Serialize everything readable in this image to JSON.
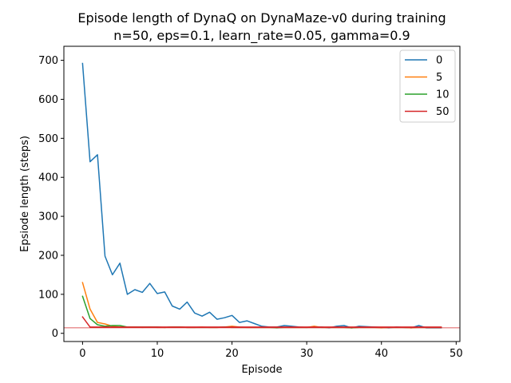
{
  "chart_data": {
    "type": "line",
    "title": "Episode length of DynaQ on DynaMaze-v0 during training",
    "subtitle": "n=50, eps=0.1, learn_rate=0.05, gamma=0.9",
    "xlabel": "Episode",
    "ylabel": "Epsiode length (steps)",
    "xlim": [
      -2.5,
      50.5
    ],
    "ylim": [
      -21,
      736
    ],
    "xticks": [
      0,
      10,
      20,
      30,
      40,
      50
    ],
    "yticks": [
      0,
      100,
      200,
      300,
      400,
      500,
      600,
      700
    ],
    "legend_position": "top-right",
    "reference_line": {
      "y": 14,
      "color": "#d62728"
    },
    "x": [
      0,
      1,
      2,
      3,
      4,
      5,
      6,
      7,
      8,
      9,
      10,
      11,
      12,
      13,
      14,
      15,
      16,
      17,
      18,
      19,
      20,
      21,
      22,
      23,
      24,
      25,
      26,
      27,
      28,
      29,
      30,
      31,
      32,
      33,
      34,
      35,
      36,
      37,
      38,
      39,
      40,
      41,
      42,
      43,
      44,
      45,
      46,
      47,
      48
    ],
    "series": [
      {
        "name": "0",
        "color": "#1f77b4",
        "values": [
          692,
          440,
          458,
          198,
          150,
          180,
          100,
          112,
          105,
          128,
          102,
          106,
          70,
          62,
          80,
          52,
          44,
          54,
          36,
          40,
          46,
          28,
          32,
          25,
          18,
          16,
          16,
          20,
          18,
          16,
          15,
          16,
          16,
          14,
          18,
          20,
          14,
          18,
          17,
          16,
          15,
          14,
          16,
          15,
          14,
          20,
          14,
          14,
          14
        ]
      },
      {
        "name": "5",
        "color": "#ff7f0e",
        "values": [
          130,
          62,
          28,
          24,
          18,
          16,
          16,
          16,
          15,
          16,
          15,
          15,
          16,
          16,
          15,
          15,
          16,
          15,
          15,
          16,
          18,
          16,
          15,
          15,
          15,
          15,
          15,
          15,
          15,
          15,
          15,
          18,
          15,
          15,
          15,
          15,
          14,
          15,
          15,
          15,
          14,
          15,
          15,
          15,
          14,
          15,
          15,
          15,
          15
        ]
      },
      {
        "name": "10",
        "color": "#2ca02c",
        "values": [
          95,
          38,
          22,
          18,
          20,
          20,
          16,
          16,
          16,
          16,
          16,
          15,
          16,
          16,
          15,
          15,
          15,
          15,
          15,
          16,
          15,
          15,
          15,
          15,
          15,
          15,
          14,
          15,
          15,
          15,
          15,
          15,
          15,
          15,
          15,
          15,
          14,
          15,
          15,
          15,
          15,
          15,
          15,
          15,
          15,
          15,
          15,
          15,
          15
        ]
      },
      {
        "name": "50",
        "color": "#d62728",
        "values": [
          42,
          16,
          16,
          16,
          16,
          16,
          16,
          16,
          16,
          16,
          16,
          16,
          16,
          16,
          16,
          16,
          16,
          16,
          16,
          16,
          16,
          16,
          16,
          16,
          16,
          16,
          16,
          16,
          16,
          16,
          16,
          16,
          16,
          16,
          16,
          16,
          16,
          16,
          16,
          16,
          16,
          16,
          16,
          16,
          16,
          16,
          16,
          16,
          16
        ]
      }
    ]
  }
}
